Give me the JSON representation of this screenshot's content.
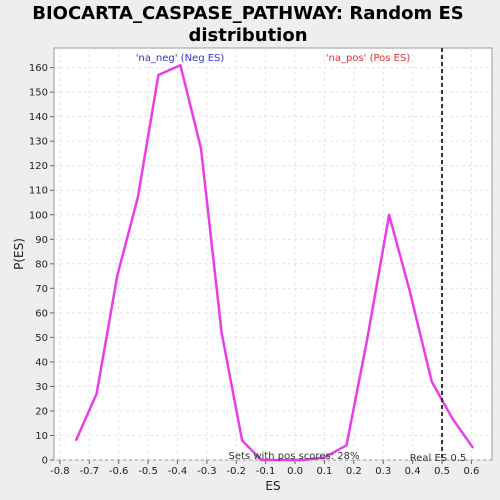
{
  "chart_data": {
    "type": "line",
    "title_line1": "BIOCARTA_CASPASE_PATHWAY: Random ES",
    "title_line2": "distribution",
    "xlabel": "ES",
    "ylabel": "P(ES)",
    "xlim": [
      -0.82,
      0.67
    ],
    "ylim": [
      0,
      168
    ],
    "x_ticks": [
      "-0.8",
      "-0.7",
      "-0.6",
      "-0.5",
      "-0.4",
      "-0.3",
      "-0.2",
      "-0.1",
      "0.0",
      "0.1",
      "0.2",
      "0.3",
      "0.4",
      "0.5",
      "0.6"
    ],
    "y_ticks": [
      "0",
      "10",
      "20",
      "30",
      "40",
      "50",
      "60",
      "70",
      "80",
      "90",
      "100",
      "110",
      "120",
      "130",
      "140",
      "150",
      "160"
    ],
    "grid": true,
    "series": [
      {
        "color": "#e83de8",
        "x": [
          -0.745,
          -0.675,
          -0.605,
          -0.535,
          -0.465,
          -0.39,
          -0.32,
          -0.25,
          -0.18,
          -0.115,
          -0.04,
          0.03,
          0.1,
          0.175,
          0.245,
          0.32,
          0.39,
          0.465,
          0.535,
          0.605
        ],
        "y": [
          8,
          27,
          75,
          107,
          157,
          161,
          127,
          52,
          8,
          0,
          0,
          0,
          1,
          6,
          49,
          100,
          69,
          32,
          17,
          5
        ]
      }
    ],
    "real_es": 0.5,
    "annotations": {
      "neg_label": "'na_neg' (Neg ES)",
      "pos_label": "'na_pos' (Pos ES)",
      "pos_scores": "Sets with pos scores: 28%",
      "real_es_label": "Real ES 0.5"
    },
    "colors": {
      "neg_label": "#3333cc",
      "pos_label": "#e03030",
      "line": "#e83de8",
      "real_es_line": "#333333"
    }
  }
}
